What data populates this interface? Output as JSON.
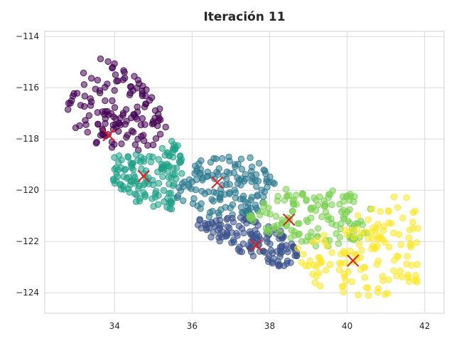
{
  "chart_data": {
    "type": "scatter",
    "title": "Iteración 11",
    "xlabel": "",
    "ylabel": "",
    "xlim": [
      32.2,
      42.5
    ],
    "ylim": [
      -124.8,
      -113.8
    ],
    "xticks": [
      34,
      36,
      38,
      40,
      42
    ],
    "yticks": [
      -114,
      -116,
      -118,
      -120,
      -122,
      -124
    ],
    "xtick_labels": [
      "34",
      "36",
      "38",
      "40",
      "42"
    ],
    "ytick_labels": [
      "−114",
      "−116",
      "−118",
      "−120",
      "−122",
      "−124"
    ],
    "grid": true,
    "legend": "none",
    "clusters": [
      {
        "color": "#440154",
        "center": [
          33.85,
          -117.85
        ],
        "region": [
          [
            32.7,
            -117.0
          ],
          [
            33.0,
            -115.4
          ],
          [
            33.9,
            -114.6
          ],
          [
            35.0,
            -116.3
          ],
          [
            35.7,
            -117.7
          ],
          [
            34.6,
            -118.6
          ],
          [
            33.5,
            -118.2
          ],
          [
            32.7,
            -117.3
          ]
        ]
      },
      {
        "color": "#1fa187",
        "center": [
          34.75,
          -119.45
        ],
        "region": [
          [
            33.9,
            -118.6
          ],
          [
            34.8,
            -118.6
          ],
          [
            35.6,
            -117.8
          ],
          [
            35.8,
            -119.2
          ],
          [
            35.5,
            -120.8
          ],
          [
            34.6,
            -120.5
          ],
          [
            33.9,
            -119.7
          ]
        ]
      },
      {
        "color": "#2a788e",
        "center": [
          36.65,
          -119.7
        ],
        "region": [
          [
            35.8,
            -119.0
          ],
          [
            36.6,
            -118.5
          ],
          [
            37.6,
            -118.7
          ],
          [
            38.2,
            -119.7
          ],
          [
            37.6,
            -121.0
          ],
          [
            36.4,
            -121.1
          ],
          [
            35.6,
            -120.3
          ]
        ]
      },
      {
        "color": "#3b528b",
        "center": [
          37.65,
          -122.15
        ],
        "region": [
          [
            36.1,
            -121.1
          ],
          [
            37.3,
            -121.0
          ],
          [
            38.3,
            -121.6
          ],
          [
            38.9,
            -122.6
          ],
          [
            38.3,
            -123.0
          ],
          [
            37.0,
            -122.3
          ],
          [
            36.2,
            -121.6
          ]
        ]
      },
      {
        "color": "#7ad151",
        "center": [
          38.5,
          -121.15
        ],
        "region": [
          [
            37.4,
            -121.0
          ],
          [
            38.2,
            -120.0
          ],
          [
            39.3,
            -119.8
          ],
          [
            40.7,
            -120.4
          ],
          [
            40.6,
            -121.8
          ],
          [
            39.3,
            -122.3
          ],
          [
            38.1,
            -121.8
          ]
        ]
      },
      {
        "color": "#fde725",
        "center": [
          40.15,
          -122.75
        ],
        "region": [
          [
            38.7,
            -122.2
          ],
          [
            39.8,
            -121.5
          ],
          [
            41.0,
            -120.2
          ],
          [
            41.9,
            -120.3
          ],
          [
            41.9,
            -123.6
          ],
          [
            40.7,
            -124.2
          ],
          [
            39.2,
            -123.8
          ],
          [
            38.8,
            -122.8
          ]
        ]
      }
    ],
    "center_marker_color": "#e41a1c"
  }
}
